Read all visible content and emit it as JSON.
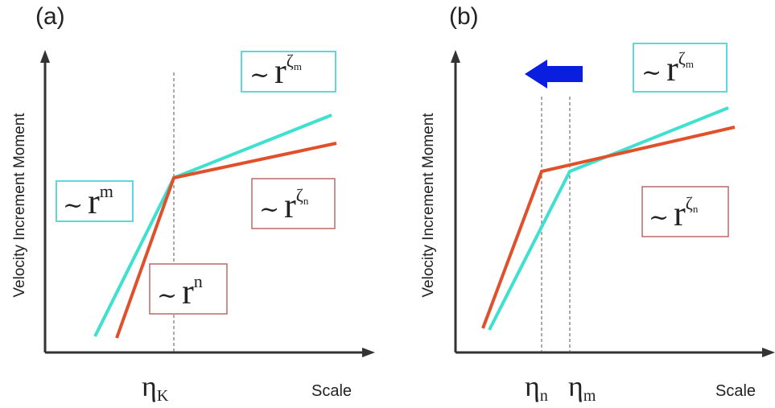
{
  "panel_a": {
    "label": "(a)",
    "ylabel": "Velocity Increment Moment",
    "xlabel": "Scale",
    "eta_symbol": "η",
    "eta_sub": "K",
    "box_top": {
      "tilde": "~",
      "r": "r",
      "exp": "ζ",
      "exp_sub": "m"
    },
    "box_left": {
      "tilde": "~",
      "r": "r",
      "exp": "m"
    },
    "box_right": {
      "tilde": "~",
      "r": "r",
      "exp": "ζ",
      "exp_sub": "n"
    },
    "box_bottom": {
      "tilde": "~",
      "r": "r",
      "exp": "n"
    }
  },
  "panel_b": {
    "label": "(b)",
    "ylabel": "Velocity Increment Moment",
    "xlabel": "Scale",
    "eta_n_symbol": "η",
    "eta_n_sub": "n",
    "eta_m_symbol": "η",
    "eta_m_sub": "m",
    "box_top": {
      "tilde": "~",
      "r": "r",
      "exp": "ζ",
      "exp_sub": "m"
    },
    "box_right": {
      "tilde": "~",
      "r": "r",
      "exp": "ζ",
      "exp_sub": "n"
    }
  },
  "colors": {
    "cyan_line": "#3fe0d0",
    "red_line": "#e0502a",
    "cyan_box": "#5ed8d8",
    "red_box": "#b86a6a",
    "arrow": "#0a1ee0"
  }
}
